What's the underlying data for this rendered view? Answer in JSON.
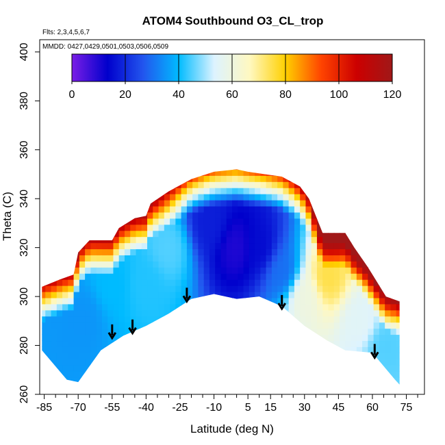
{
  "chart_data": {
    "type": "heatmap",
    "title": "ATOM4 Southbound O3_CL_trop",
    "annotations": [
      "Flts: 2,3,4,5,6,7",
      "MMDD: 0427,0429,0501,0503,0506,0509"
    ],
    "xlabel": "Latitude (deg N)",
    "ylabel": "Theta (C)",
    "xlim": [
      -87,
      83
    ],
    "ylim": [
      260,
      405
    ],
    "x_ticks": [
      -85,
      -70,
      -55,
      -40,
      -25,
      -10,
      5,
      15,
      30,
      45,
      60,
      75
    ],
    "x_tick_labels": [
      "-85",
      "-70",
      "-55",
      "-40",
      "-25",
      "-10",
      "5",
      "15",
      "30",
      "45",
      "60",
      "75"
    ],
    "y_ticks": [
      260,
      280,
      300,
      320,
      340,
      360,
      380,
      400
    ],
    "y_tick_labels": [
      "260",
      "280",
      "300",
      "320",
      "340",
      "360",
      "380",
      "400"
    ],
    "colorbar": {
      "min": 0,
      "max": 120,
      "ticks": [
        0,
        20,
        40,
        60,
        80,
        100,
        120
      ],
      "tick_labels": [
        "0",
        "20",
        "40",
        "60",
        "80",
        "100",
        "120"
      ],
      "colors": [
        "#7a1ee6",
        "#0000cc",
        "#2255ee",
        "#00bbff",
        "#ddf3ff",
        "#fff8c0",
        "#ffd000",
        "#ff4400",
        "#cc0000",
        "#a01818"
      ]
    },
    "domain_boundary": {
      "lower": [
        [
          -86,
          278
        ],
        [
          -75,
          266
        ],
        [
          -70,
          265
        ],
        [
          -60,
          278
        ],
        [
          -50,
          284
        ],
        [
          -40,
          288
        ],
        [
          -30,
          293
        ],
        [
          -20,
          299
        ],
        [
          -10,
          301
        ],
        [
          0,
          299
        ],
        [
          10,
          300
        ],
        [
          20,
          296
        ],
        [
          30,
          288
        ],
        [
          40,
          282
        ],
        [
          48,
          278
        ],
        [
          60,
          277
        ],
        [
          70,
          266
        ],
        [
          72,
          264
        ]
      ],
      "upper": [
        [
          -86,
          304
        ],
        [
          -78,
          307
        ],
        [
          -72,
          309
        ],
        [
          -70,
          318
        ],
        [
          -65,
          323
        ],
        [
          -55,
          323
        ],
        [
          -52,
          328
        ],
        [
          -45,
          332
        ],
        [
          -40,
          333
        ],
        [
          -38,
          338
        ],
        [
          -30,
          343
        ],
        [
          -20,
          348
        ],
        [
          -10,
          351
        ],
        [
          0,
          352
        ],
        [
          5,
          351
        ],
        [
          20,
          349
        ],
        [
          28,
          345
        ],
        [
          32,
          340
        ],
        [
          38,
          326
        ],
        [
          48,
          326
        ],
        [
          52,
          320
        ],
        [
          58,
          312
        ],
        [
          62,
          306
        ],
        [
          66,
          300
        ],
        [
          72,
          298
        ]
      ]
    },
    "ozone_features": [
      {
        "lat": -67.5,
        "theta": 292,
        "o3": 35
      },
      {
        "lat": -55,
        "theta": 305,
        "o3": 40
      },
      {
        "lat": -40,
        "theta": 305,
        "o3": 42
      },
      {
        "lat": -30,
        "theta": 320,
        "o3": 45
      },
      {
        "lat": -12,
        "theta": 330,
        "o3": 18
      },
      {
        "lat": 0,
        "theta": 320,
        "o3": 10
      },
      {
        "lat": 10,
        "theta": 320,
        "o3": 15
      },
      {
        "lat": 20,
        "theta": 310,
        "o3": 30
      },
      {
        "lat": 30,
        "theta": 300,
        "o3": 60
      },
      {
        "lat": 40,
        "theta": 308,
        "o3": 75
      },
      {
        "lat": 55,
        "theta": 290,
        "o3": 55
      },
      {
        "lat": 65,
        "theta": 280,
        "o3": 45
      }
    ],
    "arrows": [
      {
        "lat": -55,
        "theta": 283
      },
      {
        "lat": -46,
        "theta": 285
      },
      {
        "lat": -22,
        "theta": 298
      },
      {
        "lat": 20,
        "theta": 295
      },
      {
        "lat": 61,
        "theta": 275
      }
    ]
  }
}
